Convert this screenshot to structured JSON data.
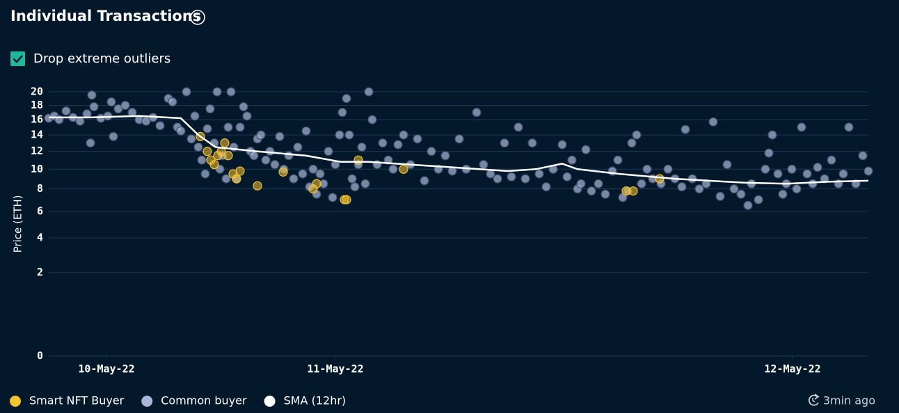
{
  "chart_data": {
    "type": "scatter",
    "title": "Individual Transactions",
    "filter_label": "Drop extreme outliers",
    "ylabel": "Price (ETH)",
    "updated": "3min ago",
    "yscale": "sqrt",
    "grid": true,
    "legend": "bottom-left",
    "xlim": [
      0,
      1178
    ],
    "xticks": [
      {
        "value": 83,
        "label": "10-May-22"
      },
      {
        "value": 412,
        "label": "11-May-22"
      },
      {
        "value": 1069,
        "label": "12-May-22"
      }
    ],
    "ylim": [
      0,
      20
    ],
    "yticks": [
      0,
      2,
      4,
      6,
      8,
      10,
      12,
      14,
      16,
      18,
      20
    ],
    "series": [
      {
        "name": "Smart NFT Buyer",
        "type": "scatter",
        "color": "#f5c230",
        "x": [
          218,
          228,
          233,
          238,
          243,
          248,
          253,
          258,
          265,
          270,
          275,
          300,
          337,
          380,
          385,
          425,
          428,
          445,
          510,
          830,
          840,
          878
        ],
        "values": [
          13.8,
          12,
          11,
          10.5,
          11.5,
          12,
          13,
          11.5,
          9.5,
          9,
          9.8,
          8.3,
          9.7,
          8,
          8.5,
          7,
          7,
          11,
          10,
          7.8,
          7.8,
          9
        ]
      },
      {
        "name": "Common buyer",
        "type": "scatter",
        "color": "#a9b6d9",
        "x": [
          0,
          8,
          15,
          25,
          35,
          45,
          55,
          60,
          62,
          65,
          75,
          85,
          90,
          93,
          100,
          110,
          120,
          130,
          140,
          150,
          160,
          172,
          178,
          185,
          190,
          198,
          205,
          210,
          215,
          220,
          225,
          228,
          232,
          238,
          242,
          246,
          250,
          255,
          258,
          262,
          266,
          270,
          275,
          280,
          285,
          290,
          295,
          300,
          305,
          312,
          318,
          325,
          332,
          338,
          345,
          352,
          358,
          365,
          370,
          375,
          380,
          385,
          390,
          395,
          402,
          408,
          412,
          418,
          422,
          428,
          432,
          436,
          440,
          445,
          450,
          455,
          460,
          465,
          472,
          480,
          488,
          495,
          502,
          510,
          520,
          530,
          540,
          550,
          560,
          570,
          580,
          590,
          600,
          615,
          625,
          635,
          645,
          655,
          665,
          675,
          685,
          695,
          705,
          715,
          725,
          738,
          745,
          752,
          760,
          765,
          772,
          780,
          790,
          800,
          810,
          818,
          825,
          832,
          838,
          845,
          852,
          860,
          868,
          880,
          890,
          900,
          910,
          915,
          925,
          935,
          945,
          955,
          965,
          975,
          985,
          995,
          1005,
          1010,
          1020,
          1030,
          1035,
          1040,
          1048,
          1055,
          1060,
          1068,
          1075,
          1082,
          1090,
          1098,
          1105,
          1115,
          1125,
          1135,
          1142,
          1150,
          1160,
          1170,
          1178
        ],
        "values": [
          16.2,
          16.5,
          16,
          17.2,
          16.3,
          15.8,
          16.8,
          13,
          19.5,
          17.8,
          16.2,
          16.5,
          18.5,
          13.8,
          17.5,
          18,
          17,
          16,
          15.8,
          16.3,
          15.2,
          19,
          18.5,
          15,
          14.5,
          20,
          13.5,
          16.5,
          12.5,
          11,
          9.5,
          14.8,
          17.5,
          13,
          20,
          10,
          11.5,
          9,
          15,
          20,
          12.5,
          9,
          15,
          17.8,
          16.5,
          12,
          11.5,
          13.5,
          14,
          11,
          12,
          10.5,
          13.8,
          10,
          11.5,
          9,
          12.5,
          9.5,
          14.5,
          8.2,
          10,
          7.5,
          9.5,
          8.5,
          12,
          7.2,
          10.5,
          14,
          17,
          19,
          14,
          9,
          8.2,
          10.5,
          12.5,
          8.5,
          20,
          16,
          10.5,
          13,
          11,
          10,
          12.8,
          14,
          10.5,
          13.5,
          8.8,
          12,
          10,
          11.5,
          9.8,
          13.5,
          10,
          17,
          10.5,
          9.5,
          9,
          13,
          9.2,
          15,
          9,
          13,
          9.5,
          8.2,
          10,
          12.8,
          9.2,
          11,
          8,
          8.5,
          12.2,
          7.8,
          8.5,
          7.5,
          9.8,
          11,
          7.2,
          7.8,
          13,
          14,
          8.5,
          10,
          9,
          8.5,
          10,
          9,
          8.2,
          14.7,
          9,
          8,
          8.5,
          15.7,
          7.3,
          10.5,
          8,
          7.5,
          6.5,
          8.5,
          7,
          10,
          11.8,
          14,
          9.5,
          7.5,
          8.5,
          10,
          8,
          15,
          9.5,
          8.5,
          10.2,
          9,
          11,
          8.5,
          9.5,
          15,
          8.5,
          11.5,
          9.8
        ]
      },
      {
        "name": "SMA (12hr)",
        "type": "line",
        "color": "#ffffff",
        "x": [
          0,
          60,
          130,
          190,
          215,
          240,
          300,
          370,
          420,
          460,
          520,
          600,
          660,
          700,
          738,
          760,
          820,
          900,
          1000,
          1060,
          1120,
          1178
        ],
        "values": [
          16.3,
          16.3,
          16.5,
          16.2,
          14,
          12.5,
          12,
          11.5,
          10.8,
          10.8,
          10.5,
          10.1,
          9.8,
          10,
          10.6,
          10,
          9.5,
          9,
          8.6,
          8.5,
          8.7,
          8.8
        ]
      }
    ]
  }
}
